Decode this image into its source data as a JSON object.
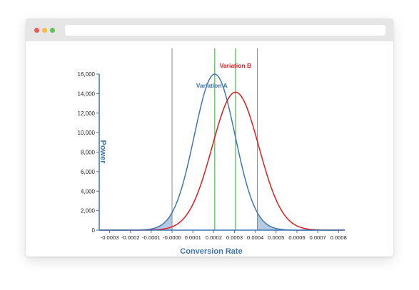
{
  "window": {
    "controls": [
      "close",
      "minimize",
      "maximize"
    ],
    "colors": {
      "close": "#ed5b5a",
      "minimize": "#f5c043",
      "maximize": "#5fc15a"
    }
  },
  "chart_data": {
    "type": "line",
    "title": "",
    "xlabel": "Conversion Rate",
    "ylabel": "Power",
    "xlim": [
      -0.00035,
      0.00083
    ],
    "ylim": [
      0,
      16000
    ],
    "x_ticks": [
      -0.0003,
      -0.0002,
      -0.0001,
      0.0,
      0.0001,
      0.0002,
      0.0003,
      0.0004,
      0.0005,
      0.0006,
      0.0007,
      0.0008
    ],
    "x_tick_labels": [
      "-0.0003",
      "-0.0002",
      "-0.0001",
      "-0.0000",
      "0.0001",
      "0.0002",
      "0.0003",
      "0.0004",
      "0.0005",
      "0.0006",
      "0.0007",
      "0.0008"
    ],
    "y_ticks": [
      0,
      2000,
      4000,
      6000,
      8000,
      10000,
      12000,
      14000,
      16000
    ],
    "y_tick_labels": [
      "0",
      "2,000",
      "4,000",
      "6,000",
      "8,000",
      "10,000",
      "12,000",
      "14,000",
      "16,000"
    ],
    "grid": false,
    "series": [
      {
        "name": "Variation A",
        "distribution": "normal",
        "mean": 0.000205,
        "sd": 9.8e-05,
        "peak": 16000,
        "color": "#3f76b2"
      },
      {
        "name": "Variation B",
        "distribution": "normal",
        "mean": 0.000305,
        "sd": 0.000112,
        "peak": 14150,
        "color": "#e31a1c"
      }
    ],
    "critical_lines": [
      0.0,
      0.00041
    ],
    "critical_line_color": "#888888",
    "mean_lines": [
      0.000205,
      0.000305
    ],
    "mean_line_color": "#4cb848",
    "shaded_regions": [
      {
        "series": "Variation A",
        "from": -0.00035,
        "to": 0.0
      },
      {
        "series": "Variation A",
        "from": 0.00041,
        "to": 0.00083
      }
    ],
    "shade_color": "#b5cbe3",
    "axis_color": "#3f76b2"
  }
}
